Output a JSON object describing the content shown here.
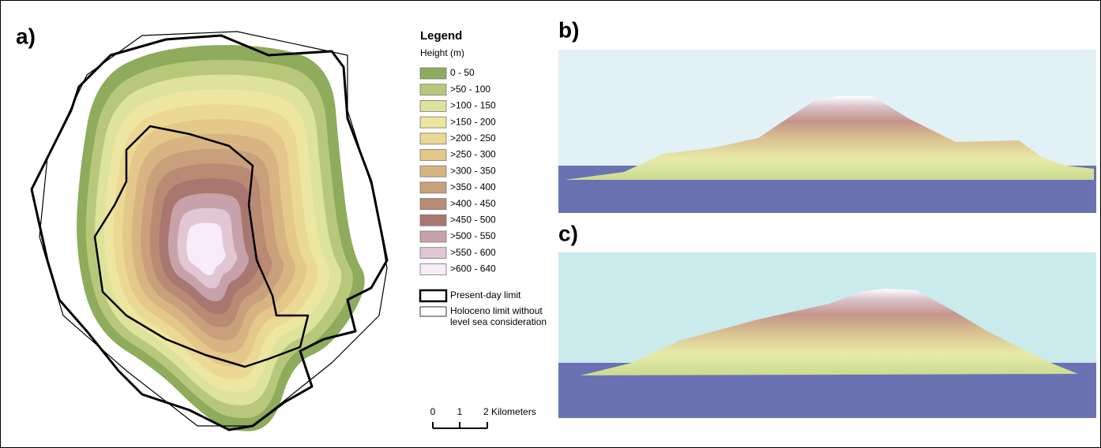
{
  "panels": [
    {
      "label": "a)"
    },
    {
      "label": "b)"
    },
    {
      "label": "c)"
    }
  ],
  "legend": {
    "title": "Legend",
    "subtitle": "Height (m)",
    "items": [
      {
        "label": "0 - 50",
        "color": "#8fab5c"
      },
      {
        "label": ">50 - 100",
        "color": "#b8c87a"
      },
      {
        "label": ">100 - 150",
        "color": "#dde39a"
      },
      {
        "label": ">150 - 200",
        "color": "#ede6a0"
      },
      {
        "label": ">200 - 250",
        "color": "#ecd895"
      },
      {
        "label": ">250 - 300",
        "color": "#e3c88a"
      },
      {
        "label": ">300 - 350",
        "color": "#d8b483"
      },
      {
        "label": ">350 - 400",
        "color": "#c9a07c"
      },
      {
        "label": ">400 - 450",
        "color": "#b98a74"
      },
      {
        "label": ">450 - 500",
        "color": "#a8776f"
      },
      {
        "label": ">500 - 550",
        "color": "#c8a2aa"
      },
      {
        "label": ">550 - 600",
        "color": "#e1c6d4"
      },
      {
        "label": ">600 - 640",
        "color": "#f8ecf8"
      }
    ],
    "limits": [
      {
        "lines": [
          "Present-day limit"
        ]
      },
      {
        "lines": [
          "Holoceno limit without",
          "level sea consideration"
        ]
      }
    ]
  },
  "scale_bar": {
    "ticks": [
      "0",
      "1",
      "2 Kilometers"
    ]
  }
}
